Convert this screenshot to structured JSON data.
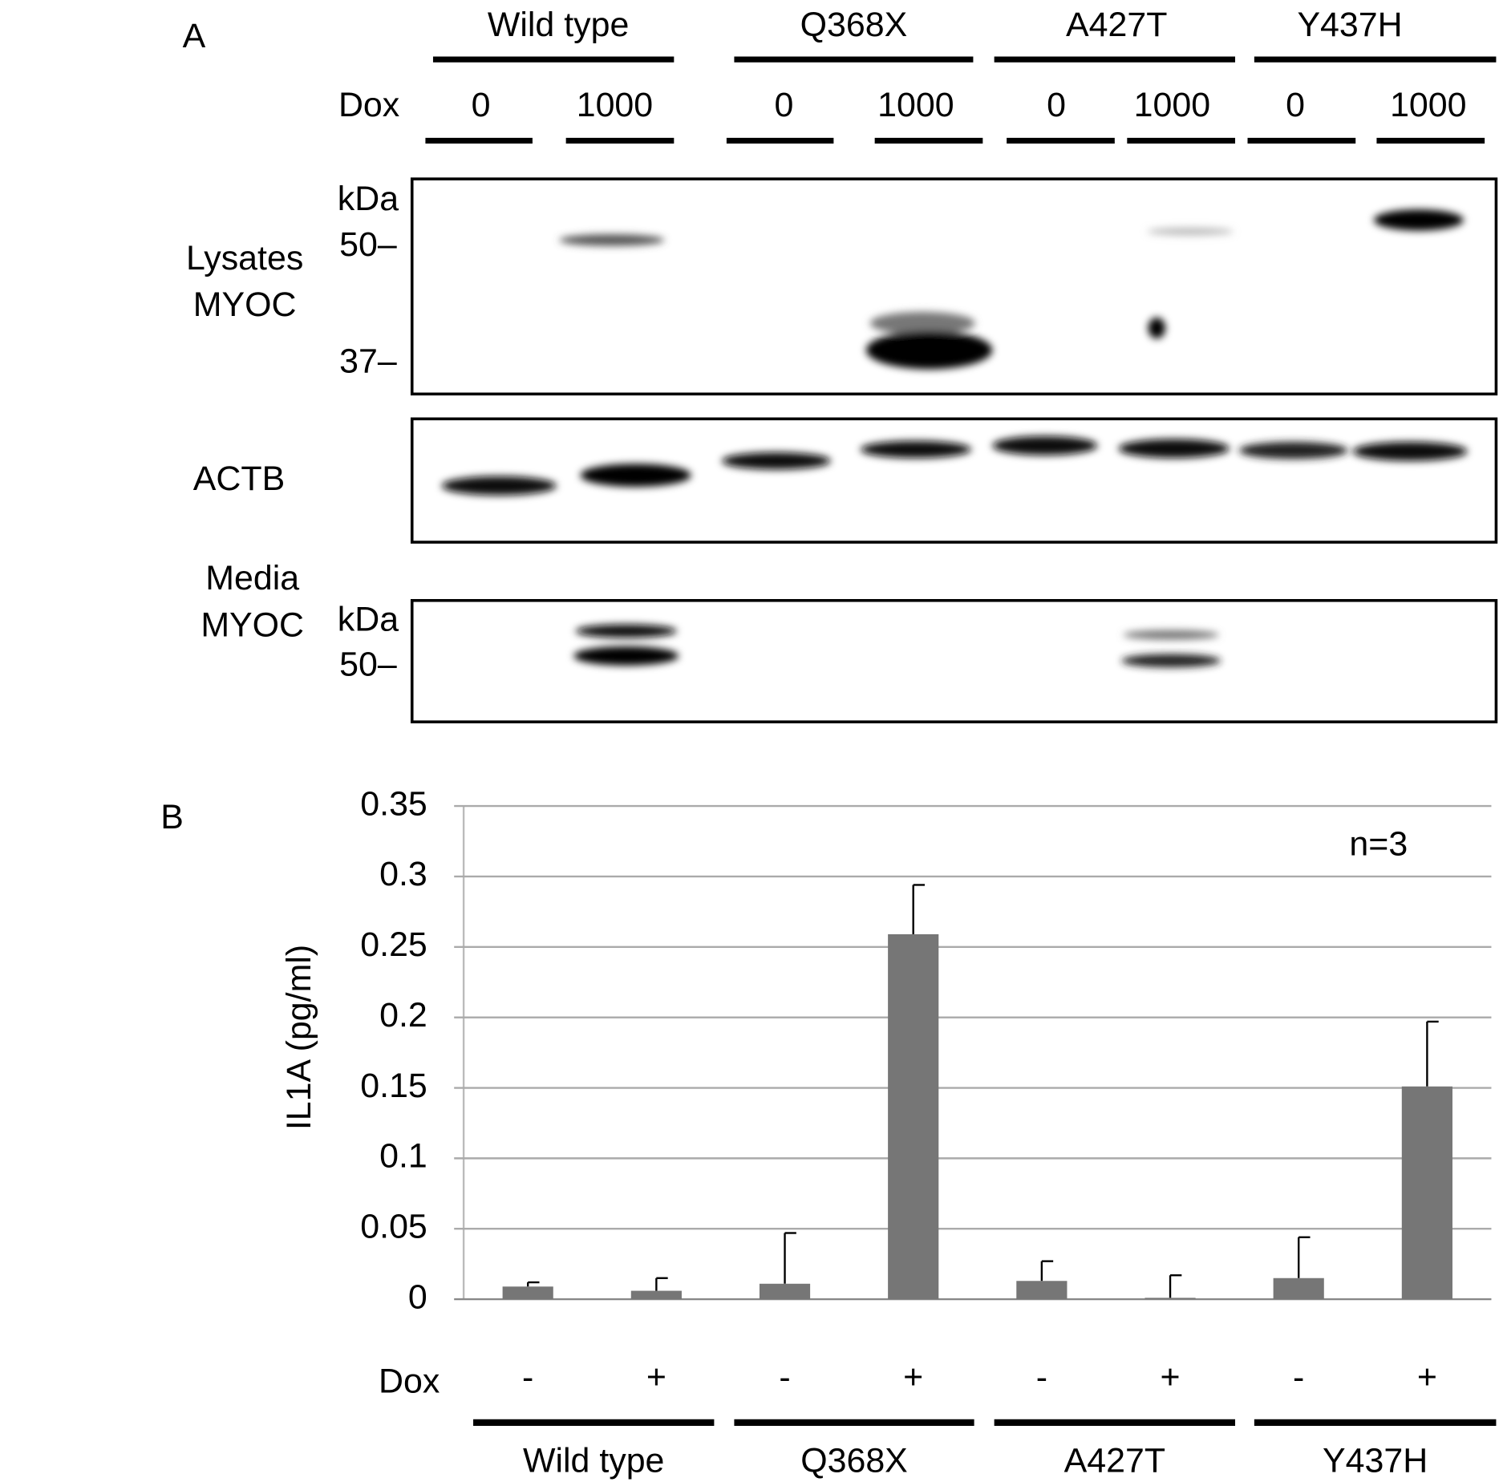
{
  "blot": {
    "label": "A",
    "groups": [
      "Wild type",
      "Q368X",
      "A427T",
      "Y437H"
    ],
    "dose_label": "Dox",
    "doses": [
      "0",
      "1000",
      "0",
      "1000",
      "0",
      "1000",
      "0",
      "1000"
    ],
    "panels": [
      {
        "lines": [
          "Lysates",
          "MYOC"
        ],
        "unit": "kDa",
        "markers": [
          "50–",
          "37–"
        ]
      },
      {
        "lines": [
          "ACTB"
        ]
      },
      {
        "lines": [
          "Media",
          "MYOC"
        ],
        "unit": "kDa",
        "markers": [
          "50–"
        ]
      }
    ]
  },
  "chart_data": {
    "type": "bar",
    "panel_label": "B",
    "annotation": "n=3",
    "ylabel": "IL1A (pg/ml)",
    "xlabel": "Dox",
    "categories": [
      "-",
      "+",
      "-",
      "+",
      "-",
      "+",
      "-",
      "+"
    ],
    "groups": [
      "Wild type",
      "Q368X",
      "A427T",
      "Y437H"
    ],
    "values": [
      0.009,
      0.006,
      0.011,
      0.259,
      0.013,
      0.001,
      0.015,
      0.151
    ],
    "errors": [
      0.003,
      0.009,
      0.036,
      0.035,
      0.014,
      0.016,
      0.029,
      0.046
    ],
    "color": "#767676",
    "ylim": [
      0,
      0.35
    ],
    "yticks": [
      0,
      0.05,
      0.1,
      0.15,
      0.2,
      0.25,
      0.3,
      0.35
    ],
    "grid": true
  }
}
